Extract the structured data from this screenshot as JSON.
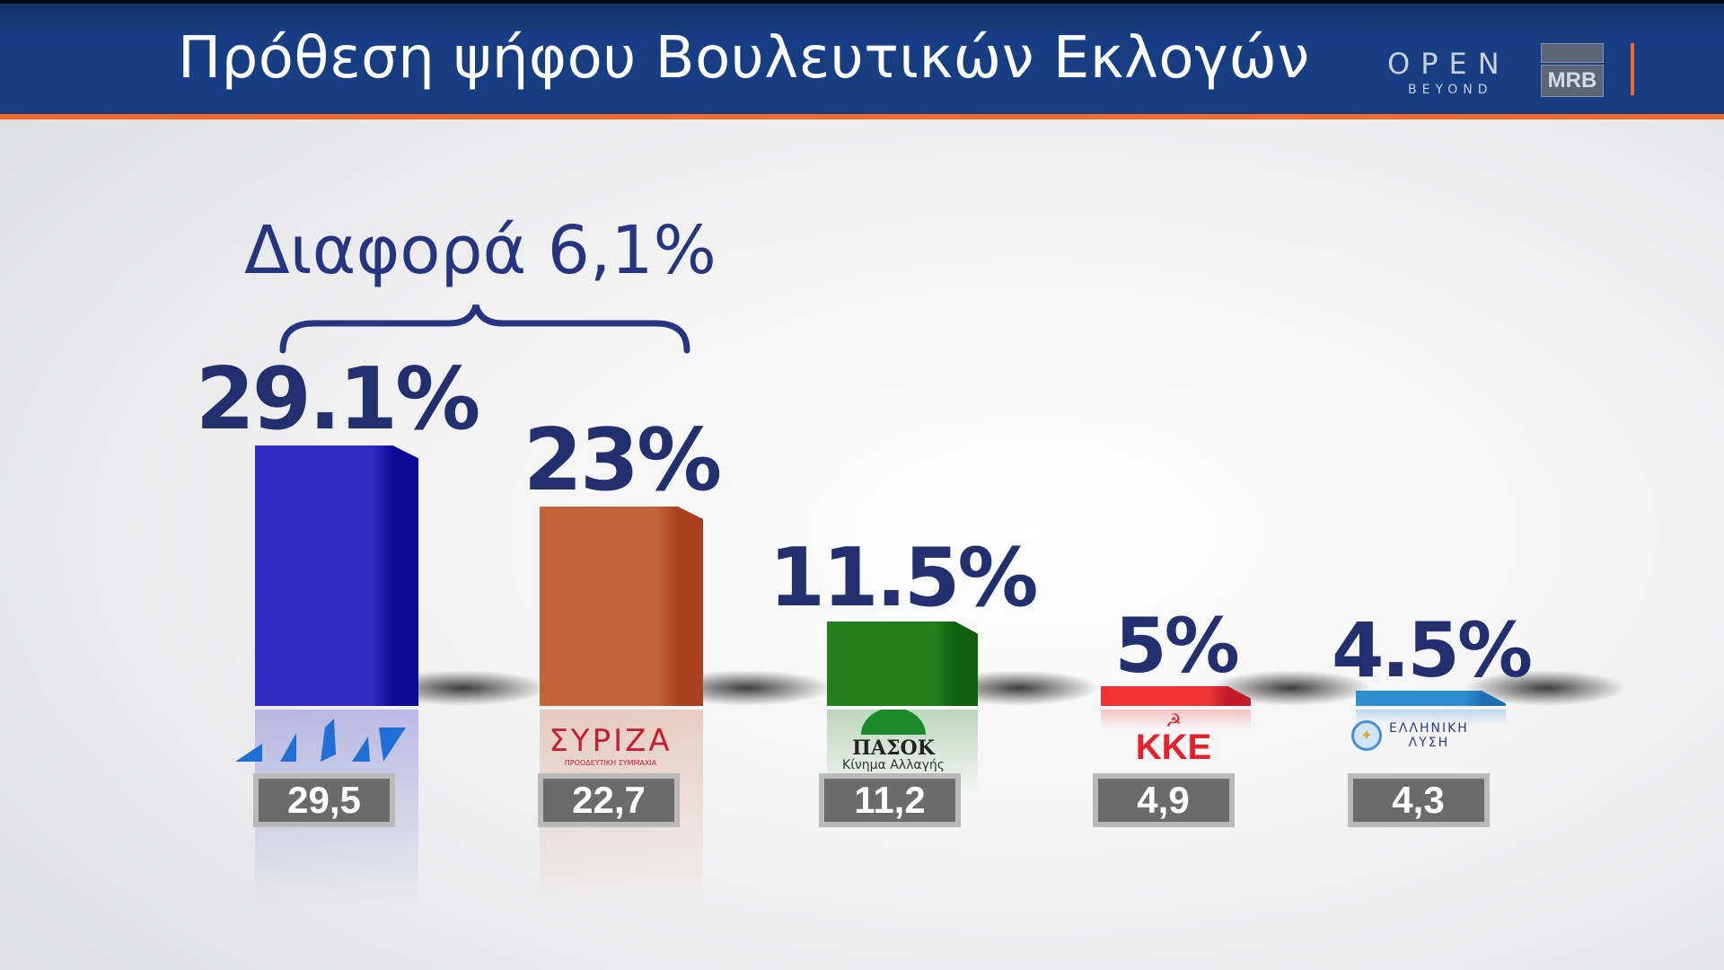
{
  "header": {
    "title": "Πρόθεση ψήφου Βουλευτικών Εκλογών",
    "logo_open": "OPEN",
    "logo_beyond": "BEYOND",
    "logo_mrb": "MRB"
  },
  "annotation": "Διαφορά 6,1%",
  "chart_data": {
    "type": "bar",
    "title": "Πρόθεση ψήφου Βουλευτικών Εκλογών",
    "categories": [
      "ΝΔ",
      "ΣΥΡΙΖΑ",
      "ΠΑΣΟΚ",
      "ΚΚΕ",
      "ΕΛΛΗΝΙΚΗ ΛΥΣΗ"
    ],
    "values": [
      29.1,
      23,
      11.5,
      5,
      4.5
    ],
    "labels": [
      "29.1%",
      "23%",
      "11.5%",
      "5%",
      "4.5%"
    ],
    "previous_values": [
      "29,5",
      "22,7",
      "11,2",
      "4,9",
      "4,3"
    ],
    "ylim": [
      3,
      32
    ],
    "grid": false,
    "annotation": "Διαφορά 6,1%",
    "colors": [
      [
        "#2d2dc4",
        "#0a0a96"
      ],
      [
        "#c3643a",
        "#a9401f"
      ],
      [
        "#23801c",
        "#11610f"
      ],
      [
        "#ee3535",
        "#c41a2a"
      ],
      [
        "#2e8fd0",
        "#1f6fb3"
      ]
    ]
  },
  "logos": {
    "syriza": {
      "name": "ΣΥΡΙΖΑ",
      "sub": "ΠΡΟΟΔΕΥΤΙΚΗ ΣΥΜΜΑΧΙΑ"
    },
    "pasok": {
      "name": "ΠΑΣΟΚ",
      "sub": "Κίνημα Αλλαγής"
    },
    "kke": {
      "name": "ΚΚΕ"
    },
    "elliniki": {
      "name": "ΕΛΛΗΝΙΚΗ",
      "sub": "ΛΥΣΗ"
    }
  }
}
